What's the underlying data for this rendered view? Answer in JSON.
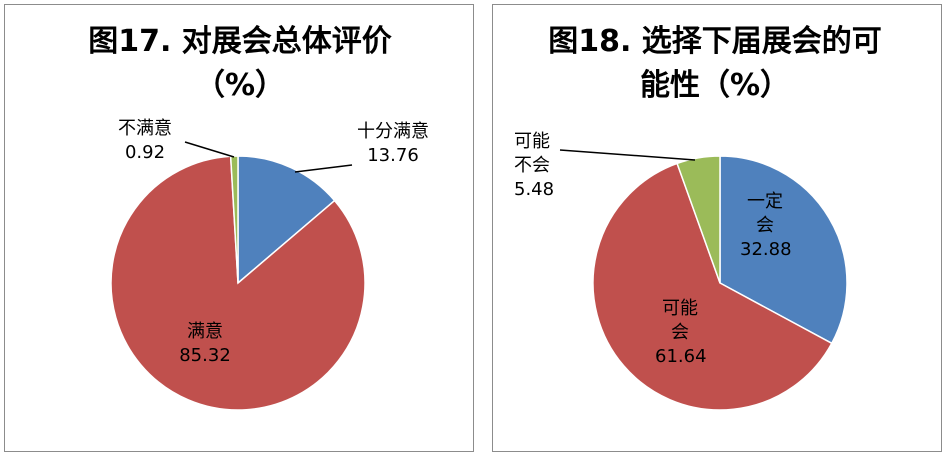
{
  "chart_data": [
    {
      "type": "pie",
      "title": "图17. 对展会总体评价（%）",
      "categories": [
        "十分满意",
        "满意",
        "不满意"
      ],
      "values": [
        13.76,
        85.32,
        0.92
      ],
      "colors": [
        "#4f81bd",
        "#c0504d",
        "#9bbb59"
      ]
    },
    {
      "type": "pie",
      "title": "图18. 选择下届展会的可能性（%）",
      "categories": [
        "一定会",
        "可能会",
        "可能不会"
      ],
      "values": [
        32.88,
        61.64,
        5.48
      ],
      "colors": [
        "#4f81bd",
        "#c0504d",
        "#9bbb59"
      ]
    }
  ]
}
